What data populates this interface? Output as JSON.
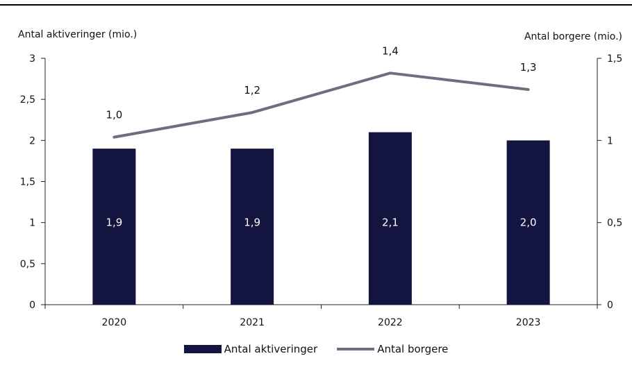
{
  "chart_data": {
    "type": "bar",
    "categories": [
      "2020",
      "2021",
      "2022",
      "2023"
    ],
    "series": [
      {
        "name": "Antal aktiveringer",
        "type": "bar",
        "axis": "left",
        "values": [
          1.9,
          1.9,
          2.1,
          2.0
        ],
        "labels": [
          "1,9",
          "1,9",
          "2,1",
          "2,0"
        ],
        "color": "#141441"
      },
      {
        "name": "Antal borgere",
        "type": "line",
        "axis": "right",
        "values": [
          1.02,
          1.17,
          1.41,
          1.31
        ],
        "labels": [
          "1,0",
          "1,2",
          "1,4",
          "1,3"
        ],
        "color": "#6e6e80"
      }
    ],
    "ylabel": "Antal aktiveringer (mio.)",
    "y2label": "Antal borgere (mio.)",
    "ylim": [
      0,
      3
    ],
    "y2lim": [
      0,
      1.5
    ],
    "yticks": [
      "0",
      "0,5",
      "1",
      "1,5",
      "2",
      "2,5",
      "3"
    ],
    "y2ticks": [
      "0",
      "0,5",
      "1",
      "1,5"
    ],
    "grid": false,
    "legend_position": "bottom"
  }
}
